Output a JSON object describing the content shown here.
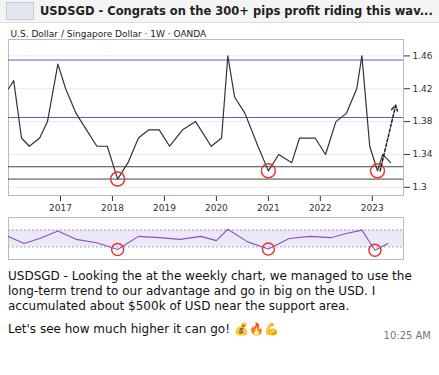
{
  "header": {
    "text": "USDSGD - Congrats on the 300+ pips profit riding this wav..."
  },
  "chart_data": [
    {
      "type": "line",
      "title": "U.S. Dollar / Singapore Dollar · 1W · OANDA",
      "x": [
        2016.0,
        2016.1,
        2016.25,
        2016.4,
        2016.6,
        2016.75,
        2016.95,
        2017.1,
        2017.3,
        2017.5,
        2017.7,
        2017.9,
        2018.1,
        2018.3,
        2018.5,
        2018.7,
        2018.9,
        2019.1,
        2019.35,
        2019.6,
        2019.9,
        2020.1,
        2020.22,
        2020.35,
        2020.55,
        2020.8,
        2021.0,
        2021.2,
        2021.45,
        2021.6,
        2021.9,
        2022.1,
        2022.3,
        2022.5,
        2022.7,
        2022.8,
        2022.95,
        2023.1,
        2023.2,
        2023.35
      ],
      "values": [
        1.42,
        1.43,
        1.36,
        1.35,
        1.36,
        1.38,
        1.45,
        1.42,
        1.39,
        1.37,
        1.35,
        1.35,
        1.31,
        1.33,
        1.36,
        1.37,
        1.37,
        1.35,
        1.37,
        1.38,
        1.35,
        1.36,
        1.46,
        1.41,
        1.39,
        1.35,
        1.32,
        1.34,
        1.33,
        1.36,
        1.36,
        1.34,
        1.38,
        1.39,
        1.42,
        1.46,
        1.35,
        1.32,
        1.34,
        1.33
      ],
      "color": "#333333",
      "xlim": [
        2016.0,
        2023.6
      ],
      "xticks": [
        2017,
        2018,
        2019,
        2020,
        2021,
        2022,
        2023
      ],
      "ylim": [
        1.29,
        1.48
      ],
      "yticks": [
        1.3,
        1.34,
        1.38,
        1.42,
        1.46
      ],
      "levels": {
        "values": [
          1.31,
          1.325,
          1.385,
          1.455
        ],
        "colors": [
          "#444444",
          "#444444",
          "#5b5bd6",
          "#5b5bd6"
        ]
      },
      "circled_lows": {
        "x": [
          2018.1,
          2021.0,
          2023.1
        ],
        "y": [
          1.31,
          1.32,
          1.32
        ],
        "color": "#e53935"
      },
      "projection": {
        "x": [
          2023.15,
          2023.45
        ],
        "y": [
          1.32,
          1.4
        ]
      }
    },
    {
      "type": "line",
      "x": [
        2016.0,
        2016.3,
        2016.6,
        2016.95,
        2017.3,
        2017.7,
        2018.1,
        2018.5,
        2018.9,
        2019.3,
        2019.7,
        2020.0,
        2020.22,
        2020.6,
        2021.0,
        2021.4,
        2021.8,
        2022.2,
        2022.5,
        2022.8,
        2023.05,
        2023.3
      ],
      "values": [
        55,
        38,
        50,
        68,
        48,
        40,
        24,
        55,
        52,
        48,
        55,
        45,
        72,
        42,
        25,
        50,
        55,
        52,
        62,
        70,
        22,
        38
      ],
      "color": "#7e57c2",
      "xlim": [
        2016.0,
        2023.6
      ],
      "ylim": [
        0,
        100
      ],
      "band": [
        30,
        70
      ],
      "tick_labels": false,
      "circled_lows": {
        "x": [
          2018.1,
          2021.0,
          2023.05
        ],
        "y": [
          24,
          25,
          22
        ],
        "color": "#e53935"
      }
    }
  ],
  "message": {
    "paragraphs": [
      "USDSGD - Looking the at the weekly chart, we managed to use the long-term trend to our advantage and go in big on the USD. I accumulated about $500k of USD near the support area.",
      "Let's see how much higher it can go! 💰🔥💪"
    ],
    "time": "10:25 AM"
  }
}
